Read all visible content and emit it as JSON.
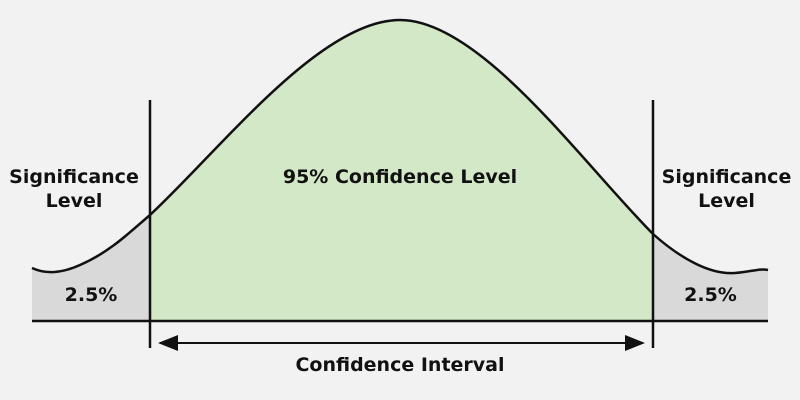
{
  "labels": {
    "left_significance_line1": "Significance",
    "left_significance_line2": "Level",
    "right_significance_line1": "Significance",
    "right_significance_line2": "Level",
    "center": "95% Confidence Level",
    "left_tail": "2.5%",
    "right_tail": "2.5%",
    "interval": "Confidence Interval"
  },
  "colors": {
    "background": "#f2f2f2",
    "tail_fill": "#d9d9d9",
    "center_fill": "#d3e8c6",
    "line": "#111111"
  }
}
